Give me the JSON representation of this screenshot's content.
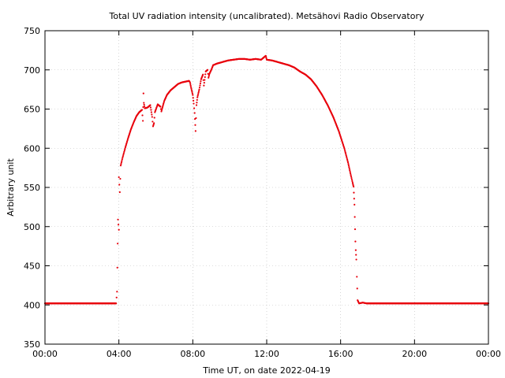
{
  "chart_data": {
    "type": "scatter",
    "title": "Total UV radiation intensity (uncalibrated). Metsähovi Radio Observatory",
    "xlabel": "Time UT, on date 2022-04-19",
    "ylabel": "Arbitrary unit",
    "xlim": [
      "00:00",
      "24:00"
    ],
    "ylim": [
      350,
      750
    ],
    "x_ticks": [
      "00:00",
      "04:00",
      "08:00",
      "12:00",
      "16:00",
      "20:00",
      "00:00"
    ],
    "y_ticks": [
      "350",
      "400",
      "450",
      "500",
      "550",
      "600",
      "650",
      "700",
      "750"
    ],
    "grid": true,
    "legend": "none",
    "series_color": "#e8000b",
    "x_units": "hours UT",
    "points": [
      [
        0.0,
        402
      ],
      [
        3.85,
        402
      ],
      [
        3.9,
        417
      ],
      [
        3.95,
        509
      ],
      [
        4.0,
        496
      ],
      [
        4.0,
        563
      ],
      [
        4.05,
        544
      ],
      [
        4.1,
        578
      ],
      [
        4.2,
        588
      ],
      [
        4.35,
        601
      ],
      [
        4.5,
        613
      ],
      [
        4.65,
        624
      ],
      [
        4.8,
        633
      ],
      [
        4.95,
        641
      ],
      [
        5.1,
        646
      ],
      [
        5.25,
        649
      ],
      [
        5.3,
        635
      ],
      [
        5.33,
        670
      ],
      [
        5.35,
        658
      ],
      [
        5.4,
        651
      ],
      [
        5.55,
        652
      ],
      [
        5.7,
        655
      ],
      [
        5.8,
        640
      ],
      [
        5.85,
        628
      ],
      [
        5.9,
        632
      ],
      [
        5.95,
        646
      ],
      [
        6.1,
        656
      ],
      [
        6.25,
        653
      ],
      [
        6.3,
        647
      ],
      [
        6.45,
        660
      ],
      [
        6.6,
        668
      ],
      [
        6.8,
        674
      ],
      [
        7.0,
        678
      ],
      [
        7.2,
        682
      ],
      [
        7.4,
        684
      ],
      [
        7.6,
        685
      ],
      [
        7.8,
        686
      ],
      [
        7.85,
        684
      ],
      [
        7.9,
        678
      ],
      [
        8.0,
        668
      ],
      [
        8.05,
        657
      ],
      [
        8.1,
        645
      ],
      [
        8.15,
        622
      ],
      [
        8.2,
        655
      ],
      [
        8.25,
        665
      ],
      [
        8.35,
        675
      ],
      [
        8.45,
        688
      ],
      [
        8.55,
        694
      ],
      [
        8.6,
        680
      ],
      [
        8.7,
        698
      ],
      [
        8.8,
        700
      ],
      [
        8.85,
        690
      ],
      [
        8.9,
        695
      ],
      [
        9.0,
        700
      ],
      [
        9.1,
        706
      ],
      [
        9.3,
        708
      ],
      [
        9.6,
        710
      ],
      [
        9.9,
        712
      ],
      [
        10.2,
        713
      ],
      [
        10.5,
        714
      ],
      [
        10.8,
        714
      ],
      [
        11.1,
        713
      ],
      [
        11.4,
        714
      ],
      [
        11.7,
        713
      ],
      [
        11.95,
        718
      ],
      [
        12.0,
        713
      ],
      [
        12.3,
        712
      ],
      [
        12.6,
        710
      ],
      [
        12.9,
        708
      ],
      [
        13.2,
        706
      ],
      [
        13.5,
        703
      ],
      [
        13.8,
        698
      ],
      [
        14.1,
        694
      ],
      [
        14.4,
        688
      ],
      [
        14.7,
        679
      ],
      [
        15.0,
        668
      ],
      [
        15.3,
        655
      ],
      [
        15.6,
        640
      ],
      [
        15.9,
        622
      ],
      [
        16.2,
        600
      ],
      [
        16.4,
        582
      ],
      [
        16.55,
        566
      ],
      [
        16.65,
        556
      ],
      [
        16.7,
        551
      ],
      [
        16.75,
        528
      ],
      [
        16.8,
        481
      ],
      [
        16.82,
        470
      ],
      [
        16.85,
        458
      ],
      [
        16.88,
        436
      ],
      [
        16.92,
        406
      ],
      [
        17.0,
        402
      ],
      [
        17.2,
        403
      ],
      [
        17.4,
        402
      ],
      [
        24.0,
        402
      ]
    ]
  }
}
